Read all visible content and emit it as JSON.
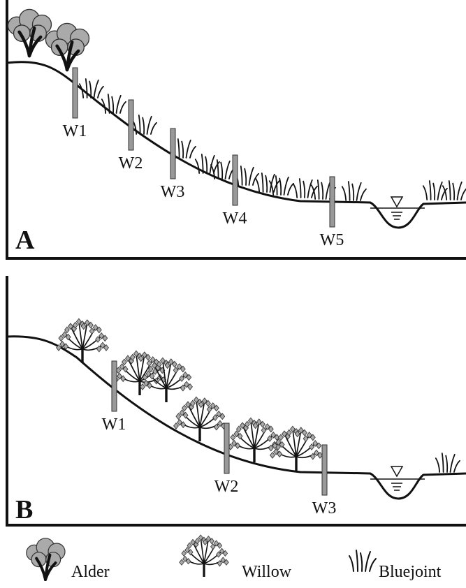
{
  "panels": [
    {
      "label": "A",
      "wells": [
        "W1",
        "W2",
        "W3",
        "W4",
        "W5"
      ]
    },
    {
      "label": "B",
      "wells": [
        "W1",
        "W2",
        "W3"
      ]
    }
  ],
  "legend": [
    "Alder",
    "Willow",
    "Bluejoint"
  ]
}
